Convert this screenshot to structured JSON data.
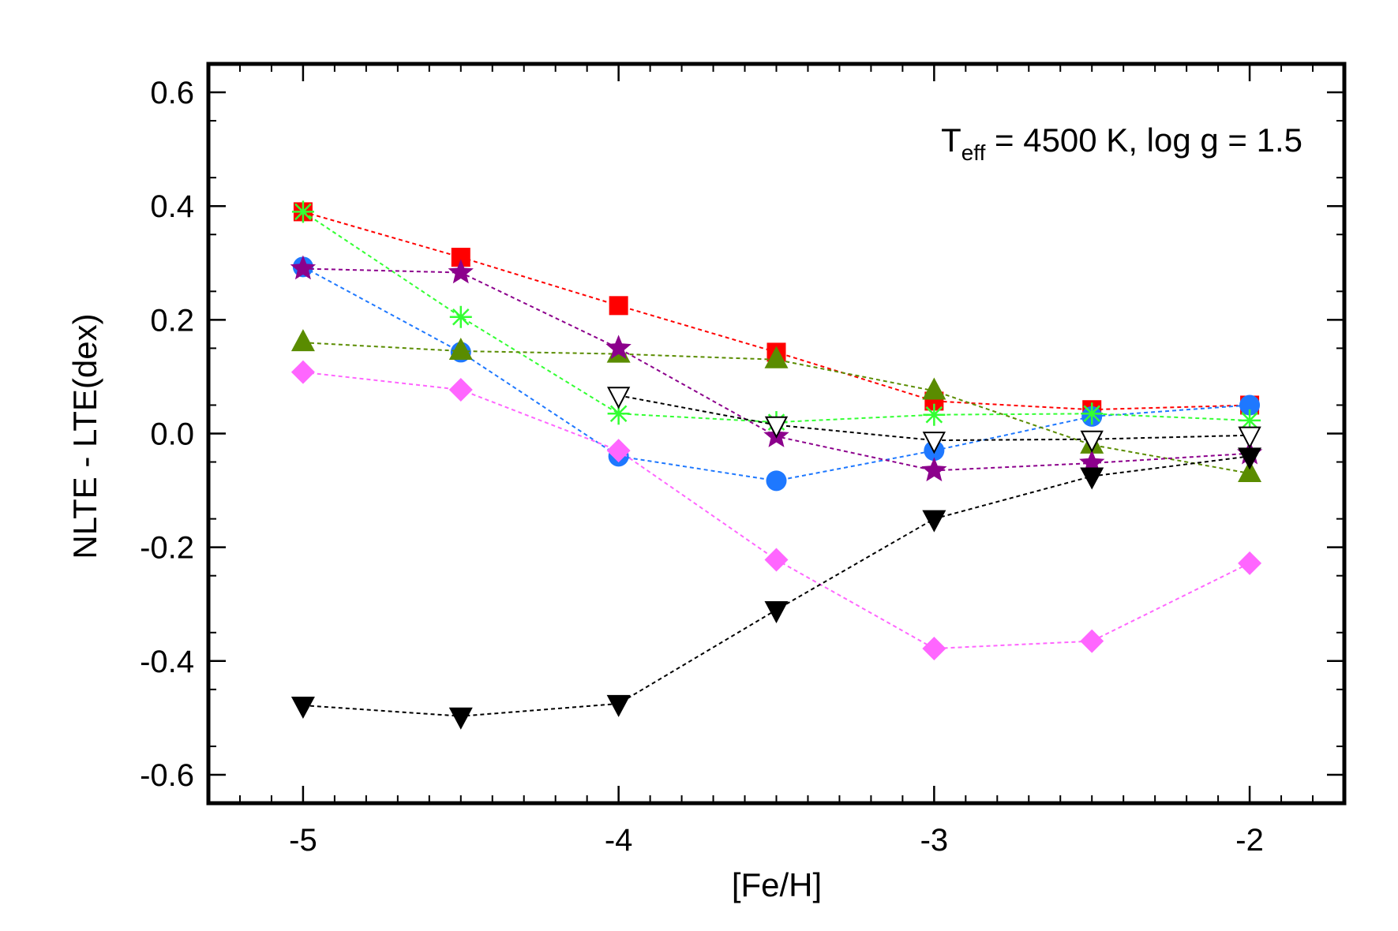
{
  "chart_data": {
    "type": "scatter",
    "xlabel": "[Fe/H]",
    "ylabel": "NLTE - LTE(dex)",
    "xlim": [
      -5.3,
      -1.7
    ],
    "ylim": [
      -0.65,
      0.65
    ],
    "x_ticks": [
      -5,
      -4,
      -3,
      -2
    ],
    "x_tick_labels": [
      "-5",
      "-4",
      "-3",
      "-2"
    ],
    "y_ticks": [
      -0.6,
      -0.4,
      -0.2,
      0.0,
      0.2,
      0.4,
      0.6
    ],
    "y_tick_labels": [
      "-0.6",
      "-0.4",
      "-0.2",
      "0.0",
      "0.2",
      "0.4",
      "0.6"
    ],
    "annotation": {
      "main": "T",
      "sub": "eff",
      "rest": " = 4500 K, log g = 1.5"
    },
    "grid": false,
    "line_style": "dashed",
    "series": [
      {
        "marker": "square",
        "color": "#ff0000",
        "x": [
          -5,
          -4.5,
          -4,
          -3.5,
          -3,
          -2.5,
          -2
        ],
        "y": [
          0.39,
          0.31,
          0.225,
          0.143,
          0.057,
          0.042,
          0.05
        ]
      },
      {
        "marker": "circle",
        "color": "#1e78ff",
        "x": [
          -5,
          -4.5,
          -4,
          -3.5,
          -3,
          -2.5,
          -2
        ],
        "y": [
          0.293,
          0.143,
          -0.04,
          -0.083,
          -0.03,
          0.03,
          0.05
        ]
      },
      {
        "marker": "asterisk",
        "color": "#33ff33",
        "x": [
          -5,
          -4.5,
          -4,
          -3.5,
          -3,
          -2.5,
          -2
        ],
        "y": [
          0.39,
          0.205,
          0.035,
          0.02,
          0.033,
          0.035,
          0.023
        ]
      },
      {
        "marker": "triangle-up",
        "color": "#5a8c00",
        "x": [
          -5,
          -4.5,
          -4,
          -3.5,
          -3,
          -2.5,
          -2
        ],
        "y": [
          0.16,
          0.145,
          0.14,
          0.13,
          0.075,
          -0.02,
          -0.07
        ]
      },
      {
        "marker": "star",
        "color": "#8c008c",
        "x": [
          -5,
          -4.5,
          -4,
          -3.5,
          -3,
          -2.5,
          -2
        ],
        "y": [
          0.29,
          0.283,
          0.15,
          -0.005,
          -0.065,
          -0.052,
          -0.035
        ]
      },
      {
        "marker": "diamond",
        "color": "#ff66ff",
        "x": [
          -5,
          -4.5,
          -4,
          -3.5,
          -3,
          -2.5,
          -2
        ],
        "y": [
          0.108,
          0.077,
          -0.03,
          -0.222,
          -0.378,
          -0.365,
          -0.228
        ]
      },
      {
        "marker": "triangle-down-open",
        "color": "#000000",
        "x": [
          -4,
          -3.5,
          -3,
          -2.5,
          -2
        ],
        "y": [
          0.067,
          0.015,
          -0.012,
          -0.01,
          -0.003
        ]
      },
      {
        "marker": "triangle-down",
        "color": "#000000",
        "x": [
          -5,
          -4.5,
          -4,
          -3.5,
          -3,
          -2.5,
          -2
        ],
        "y": [
          -0.478,
          -0.497,
          -0.475,
          -0.31,
          -0.15,
          -0.075,
          -0.04
        ]
      }
    ]
  }
}
